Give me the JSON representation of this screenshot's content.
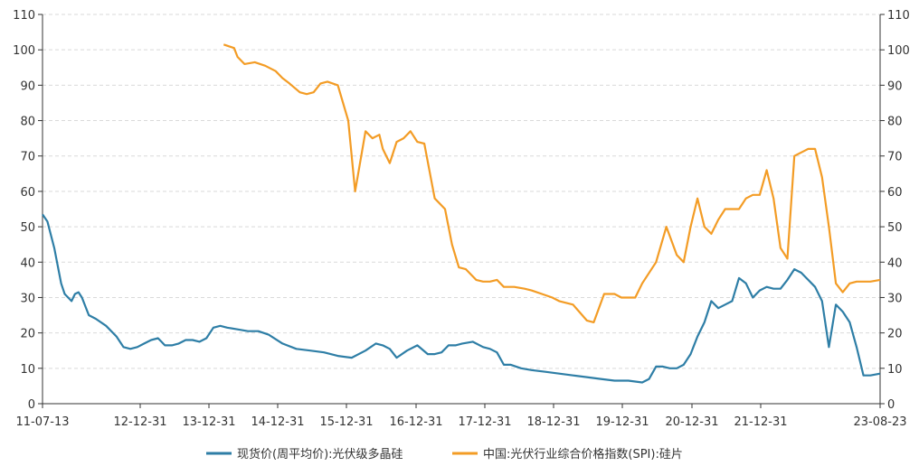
{
  "chart_data": {
    "type": "line",
    "title": "",
    "xlabel": "",
    "ylabel": "",
    "ylim_left": [
      0,
      110
    ],
    "ylim_right": [
      0,
      110
    ],
    "y_ticks": [
      0,
      10,
      20,
      30,
      40,
      50,
      60,
      70,
      80,
      90,
      100,
      110
    ],
    "x_tick_labels": [
      "11-07-13",
      "12-12-31",
      "13-12-31",
      "14-12-31",
      "15-12-31",
      "16-12-31",
      "17-12-31",
      "18-12-31",
      "19-12-31",
      "20-12-31",
      "21-12-31",
      "23-08-23"
    ],
    "grid": "horizontal dashed",
    "legend_position": "bottom",
    "series": [
      {
        "name": "现货价(周平均价):光伏级多晶硅",
        "color": "#2e7ea6",
        "axis": "left",
        "x": [
          2011.53,
          2011.6,
          2011.7,
          2011.8,
          2011.85,
          2011.95,
          2012.0,
          2012.05,
          2012.1,
          2012.2,
          2012.3,
          2012.45,
          2012.6,
          2012.7,
          2012.8,
          2012.9,
          2013.0,
          2013.1,
          2013.2,
          2013.25,
          2013.3,
          2013.4,
          2013.5,
          2013.6,
          2013.7,
          2013.8,
          2013.9,
          2014.0,
          2014.1,
          2014.2,
          2014.35,
          2014.5,
          2014.65,
          2014.8,
          2015.0,
          2015.2,
          2015.4,
          2015.6,
          2015.8,
          2016.0,
          2016.2,
          2016.35,
          2016.45,
          2016.55,
          2016.65,
          2016.8,
          2016.95,
          2017.1,
          2017.2,
          2017.3,
          2017.4,
          2017.5,
          2017.6,
          2017.75,
          2017.9,
          2018.0,
          2018.1,
          2018.2,
          2018.3,
          2018.45,
          2018.6,
          2018.8,
          2019.0,
          2019.2,
          2019.4,
          2019.6,
          2019.8,
          2020.0,
          2020.2,
          2020.3,
          2020.4,
          2020.5,
          2020.6,
          2020.7,
          2020.8,
          2020.9,
          2021.0,
          2021.1,
          2021.2,
          2021.3,
          2021.4,
          2021.5,
          2021.6,
          2021.7,
          2021.8,
          2021.9,
          2022.0,
          2022.1,
          2022.2,
          2022.3,
          2022.4,
          2022.5,
          2022.6,
          2022.7,
          2022.8,
          2022.9,
          2023.0,
          2023.1,
          2023.2,
          2023.3,
          2023.4,
          2023.5,
          2023.64
        ],
        "values": [
          53.5,
          51.5,
          44,
          34,
          31,
          29,
          31,
          31.5,
          30,
          25,
          24,
          22,
          19,
          16,
          15.5,
          16,
          17,
          18,
          18.5,
          17.5,
          16.5,
          16.5,
          17,
          18,
          18,
          17.5,
          18.5,
          21.5,
          22,
          21.5,
          21,
          20.5,
          20.5,
          19.5,
          17,
          15.5,
          15,
          14.5,
          13.5,
          13,
          15,
          17,
          16.5,
          15.5,
          13,
          15,
          16.5,
          14,
          14,
          14.5,
          16.5,
          16.5,
          17,
          17.5,
          16,
          15.5,
          14.5,
          11,
          11,
          10,
          9.5,
          9,
          8.5,
          8,
          7.5,
          7,
          6.5,
          6.5,
          6,
          7,
          10.5,
          10.5,
          10,
          10,
          11,
          14,
          19,
          23,
          29,
          27,
          28,
          29,
          35.5,
          34,
          30,
          32,
          33,
          32.5,
          32.5,
          35,
          38,
          37,
          35,
          33,
          29,
          16,
          28,
          26,
          23,
          16,
          8,
          8,
          8.5
        ]
      },
      {
        "name": "中国:光伏行业综合价格指数(SPI):硅片",
        "color": "#f39c25",
        "axis": "right",
        "x": [
          2014.15,
          2014.3,
          2014.35,
          2014.45,
          2014.6,
          2014.75,
          2014.9,
          2015.0,
          2015.1,
          2015.25,
          2015.35,
          2015.45,
          2015.55,
          2015.65,
          2015.8,
          2015.95,
          2016.05,
          2016.2,
          2016.3,
          2016.4,
          2016.45,
          2016.55,
          2016.65,
          2016.75,
          2016.85,
          2016.95,
          2017.05,
          2017.2,
          2017.35,
          2017.45,
          2017.55,
          2017.65,
          2017.8,
          2017.9,
          2018.0,
          2018.1,
          2018.2,
          2018.35,
          2018.5,
          2018.6,
          2018.75,
          2018.9,
          2019.0,
          2019.2,
          2019.4,
          2019.5,
          2019.65,
          2019.8,
          2019.9,
          2020.0,
          2020.1,
          2020.2,
          2020.4,
          2020.55,
          2020.7,
          2020.8,
          2020.9,
          2021.0,
          2021.1,
          2021.2,
          2021.3,
          2021.4,
          2021.5,
          2021.6,
          2021.7,
          2021.8,
          2021.9,
          2022.0,
          2022.1,
          2022.2,
          2022.3,
          2022.4,
          2022.5,
          2022.6,
          2022.7,
          2022.8,
          2022.9,
          2023.0,
          2023.1,
          2023.2,
          2023.3,
          2023.4,
          2023.5,
          2023.64
        ],
        "values": [
          101.5,
          100.5,
          98,
          96,
          96.5,
          95.5,
          94,
          92,
          90.5,
          88,
          87.5,
          88,
          90.5,
          91,
          90,
          80,
          60,
          77,
          75,
          76,
          72,
          68,
          74,
          75,
          77,
          74,
          73.5,
          58,
          55,
          45,
          38.5,
          38,
          35,
          34.5,
          34.5,
          35,
          33,
          33,
          32.5,
          32,
          31,
          30,
          29,
          28,
          23.5,
          23,
          31,
          31,
          30,
          30,
          30,
          34,
          40,
          50,
          42,
          40,
          50,
          58,
          50,
          48,
          52,
          55,
          55,
          55,
          58,
          59,
          59,
          66,
          58,
          44,
          41,
          70,
          71,
          72,
          72,
          64,
          50,
          34,
          31.5,
          34,
          34.5,
          34.5,
          34.5,
          35
        ]
      }
    ]
  }
}
